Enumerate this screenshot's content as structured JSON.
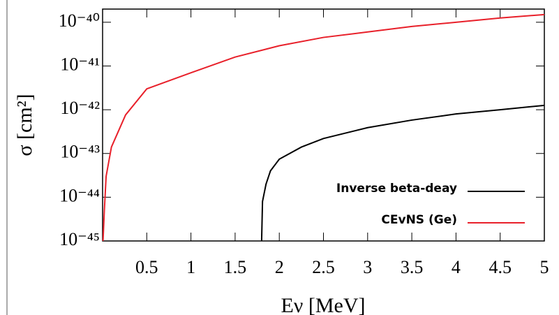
{
  "chart_data": {
    "type": "line",
    "y_scale": "log",
    "grid": false,
    "legend_position": "lower right",
    "xlabel": "Eν [MeV]",
    "ylabel": "σ [cm²]",
    "xlim": [
      0,
      5
    ],
    "xticks": [
      0.5,
      1,
      1.5,
      2,
      2.5,
      3,
      3.5,
      4,
      4.5,
      5
    ],
    "ylim": [
      1e-45,
      2e-40
    ],
    "yticks": [
      {
        "value": 1e-45,
        "label": "10⁻⁴⁵"
      },
      {
        "value": 1e-44,
        "label": "10⁻⁴⁴"
      },
      {
        "value": 1e-43,
        "label": "10⁻⁴³"
      },
      {
        "value": 1e-42,
        "label": "10⁻⁴²"
      },
      {
        "value": 1e-41,
        "label": "10⁻⁴¹"
      },
      {
        "value": 1e-40,
        "label": "10⁻⁴⁰"
      }
    ],
    "series": [
      {
        "name": "Inverse beta-deay",
        "color": "#000000",
        "x": [
          1.8,
          1.81,
          1.85,
          1.9,
          2.0,
          2.25,
          2.5,
          3.0,
          3.5,
          4.0,
          4.5,
          5.0
        ],
        "values": [
          1e-45,
          8e-45,
          2e-44,
          4e-44,
          7.4e-44,
          1.4e-43,
          2.2e-43,
          3.9e-43,
          5.8e-43,
          8e-43,
          1e-42,
          1.26e-42
        ]
      },
      {
        "name": "CEvNS (Ge)",
        "color": "#e8202a",
        "x": [
          0.005,
          0.02,
          0.04,
          0.1,
          0.26,
          0.5,
          1.0,
          1.5,
          2.0,
          2.5,
          3.0,
          3.5,
          4.0,
          4.5,
          5.0
        ],
        "values": [
          1e-45,
          5e-45,
          3e-44,
          1.4e-43,
          7.6e-43,
          3e-42,
          7e-42,
          1.6e-41,
          2.9e-41,
          4.5e-41,
          6e-41,
          8e-41,
          1e-40,
          1.25e-40,
          1.5e-40
        ]
      }
    ]
  }
}
